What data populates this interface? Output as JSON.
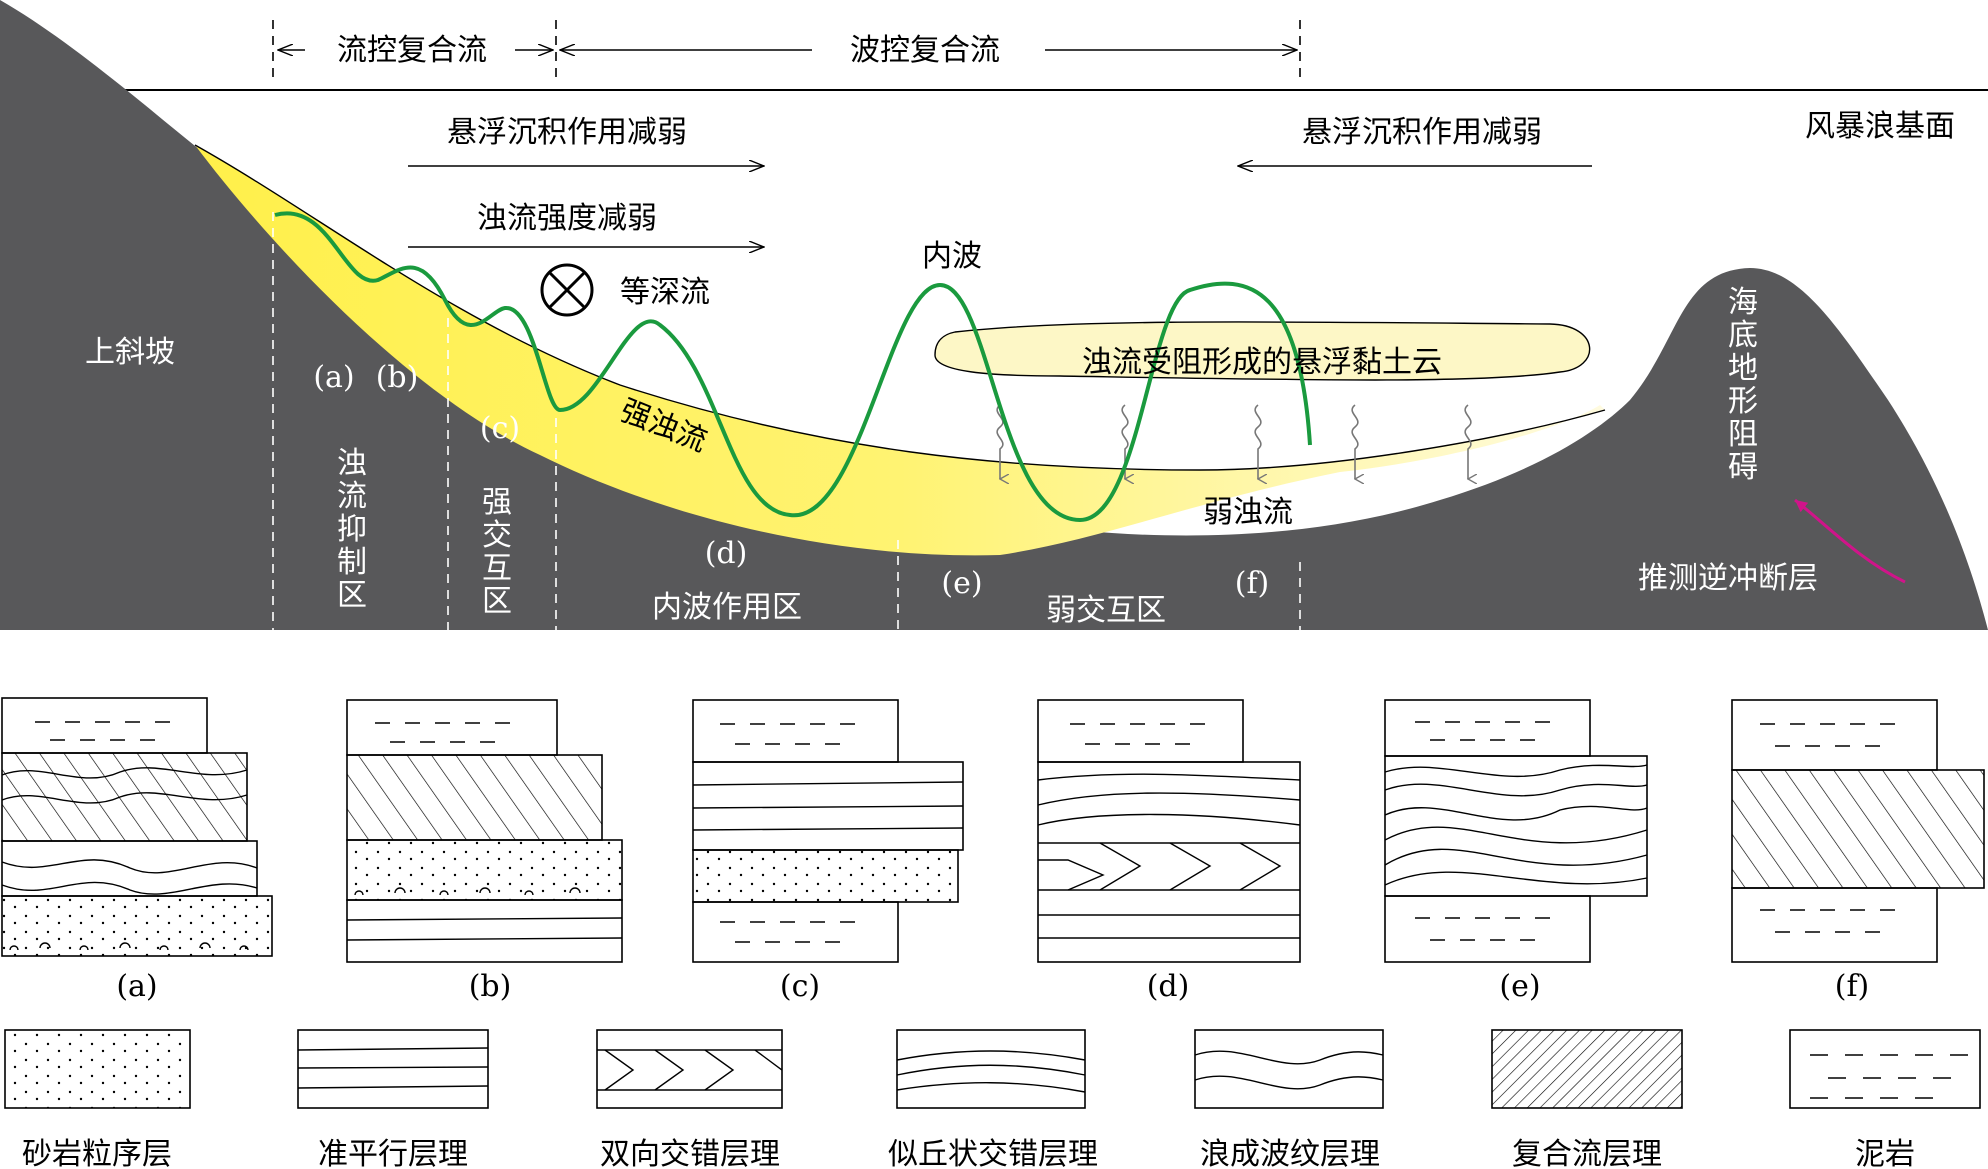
{
  "top_arrows": {
    "flow_controlled": "流控复合流",
    "wave_controlled": "波控复合流",
    "susp_weaken_left": "悬浮沉积作用减弱",
    "turbidity_weaken": "浊流强度减弱",
    "susp_weaken_right": "悬浮沉积作用减弱",
    "storm_wave_base": "风暴浪基面"
  },
  "section": {
    "upper_slope": "上斜坡",
    "contour_current": "等深流",
    "internal_wave": "内波",
    "strong_turbidity": "强浊流",
    "weak_turbidity": "弱浊流",
    "clay_cloud": "浊流受阻形成的悬浮黏土云",
    "seafloor_obstacle": [
      "海",
      "底",
      "地",
      "形",
      "阻",
      "碍"
    ],
    "thrust_fault": "推测逆冲断层",
    "point_labels": {
      "a": "(a)",
      "b": "(b)",
      "c": "(c)",
      "d": "(d)",
      "e": "(e)",
      "f": "(f)"
    },
    "zones": {
      "suppression": [
        "浊",
        "流",
        "抑",
        "制",
        "区"
      ],
      "strong_interaction": [
        "强",
        "交",
        "互",
        "区"
      ],
      "internal_wave_zone": "内波作用区",
      "weak_interaction": "弱交互区"
    }
  },
  "columns": [
    "(a)",
    "(b)",
    "(c)",
    "(d)",
    "(e)",
    "(f)"
  ],
  "legend": [
    "砂岩粒序层",
    "准平行层理",
    "双向交错层理",
    "似丘状交错层理",
    "浪成波纹层理",
    "复合流层理",
    "泥岩"
  ],
  "colors": {
    "slope_gray": "#58585a",
    "turbidity_yellow": "#fff04a",
    "cloud_fill": "#fdf7c6",
    "wave_green": "#1a9a3e",
    "fault_arrow": "#d0148a"
  }
}
